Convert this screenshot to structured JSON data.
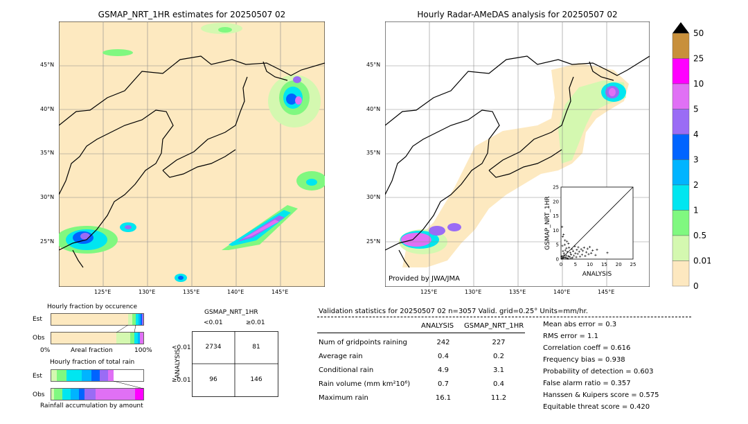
{
  "left_map": {
    "title": "GSMAP_NRT_1HR estimates for 20250507 02",
    "lat_labels": [
      "45°N",
      "40°N",
      "35°N",
      "30°N",
      "25°N"
    ],
    "lon_labels": [
      "125°E",
      "130°E",
      "135°E",
      "140°E",
      "145°E"
    ]
  },
  "right_map": {
    "title": "Hourly Radar-AMeDAS analysis for 20250507 02",
    "lat_labels": [
      "45°N",
      "40°N",
      "35°N",
      "30°N",
      "25°N"
    ],
    "lon_labels": [
      "125°E",
      "130°E",
      "135°E",
      "140°E",
      "145°E"
    ],
    "credit": "Provided by JWA/JMA"
  },
  "colorbar": {
    "levels": [
      "50",
      "25",
      "10",
      "5",
      "4",
      "3",
      "2",
      "1",
      "0.5",
      "0.01",
      "0"
    ],
    "colors": [
      "#c8903c",
      "#ff00ff",
      "#e070f5",
      "#9a6cf5",
      "#0064ff",
      "#00b4ff",
      "#00e6f0",
      "#80f880",
      "#d4f8b0",
      "#fde8c0"
    ],
    "over_color": "#000000"
  },
  "occurrence": {
    "title": "Hourly fraction by occurence",
    "rows": [
      "Est",
      "Obs"
    ],
    "xlabel_left": "0%",
    "xlabel_mid": "Areal fraction",
    "xlabel_right": "100%"
  },
  "total_rain": {
    "title": "Hourly fraction of total rain",
    "rows": [
      "Est",
      "Obs"
    ],
    "footer": "Rainfall accumulation by amount"
  },
  "contingency": {
    "col_header": "GSMAP_NRT_1HR",
    "col_lt": "<0.01",
    "col_ge": "≥0.01",
    "row_header": "ANALYSIS",
    "row_lt": "<0.01",
    "row_ge": "≥0.01",
    "cells": [
      "2734",
      "81",
      "96",
      "146"
    ]
  },
  "validation": {
    "header": "Validation statistics for 20250507 02  n=3057 Valid. grid=0.25° Units=mm/hr.",
    "col_analysis": "ANALYSIS",
    "col_gsmap": "GSMAP_NRT_1HR",
    "rows": [
      {
        "label": "Num of gridpoints raining",
        "analysis": "242",
        "gsmap": "227"
      },
      {
        "label": "Average rain",
        "analysis": "0.4",
        "gsmap": "0.2"
      },
      {
        "label": "Conditional rain",
        "analysis": "4.9",
        "gsmap": "3.1"
      },
      {
        "label": "Rain volume (mm km²10⁶)",
        "analysis": "0.7",
        "gsmap": "0.4"
      },
      {
        "label": "Maximum rain",
        "analysis": "16.1",
        "gsmap": "11.2"
      }
    ],
    "scores": [
      "Mean abs error =    0.3",
      "RMS error =    1.1",
      "Correlation coeff =  0.616",
      "Frequency bias =  0.938",
      "Probability of detection =  0.603",
      "False alarm ratio =  0.357",
      "Hanssen & Kuipers score =  0.575",
      "Equitable threat score =  0.420"
    ]
  },
  "chart_data": {
    "type": "scatter",
    "xlabel": "ANALYSIS",
    "ylabel": "GSMAP_NRT_1HR",
    "xlim": [
      0,
      25
    ],
    "ylim": [
      0,
      25
    ],
    "ticks": [
      "0",
      "5",
      "10",
      "15",
      "20",
      "25"
    ],
    "points": [
      [
        0.3,
        0.2
      ],
      [
        0.5,
        1.0
      ],
      [
        0.8,
        0.4
      ],
      [
        1.0,
        2.0
      ],
      [
        1.2,
        0.6
      ],
      [
        1.5,
        3.1
      ],
      [
        1.8,
        1.2
      ],
      [
        2.0,
        0.3
      ],
      [
        2.2,
        2.5
      ],
      [
        2.5,
        1.0
      ],
      [
        2.8,
        4.0
      ],
      [
        3.0,
        0.8
      ],
      [
        3.2,
        2.2
      ],
      [
        3.5,
        1.6
      ],
      [
        3.8,
        3.5
      ],
      [
        4.0,
        0.5
      ],
      [
        4.2,
        2.8
      ],
      [
        4.5,
        1.2
      ],
      [
        4.8,
        4.4
      ],
      [
        5.0,
        2.0
      ],
      [
        5.3,
        0.7
      ],
      [
        5.5,
        3.2
      ],
      [
        5.8,
        1.8
      ],
      [
        6.0,
        4.1
      ],
      [
        6.3,
        2.6
      ],
      [
        6.6,
        0.9
      ],
      [
        7.0,
        3.4
      ],
      [
        7.3,
        1.5
      ],
      [
        7.6,
        2.9
      ],
      [
        8.0,
        4.0
      ],
      [
        8.4,
        1.1
      ],
      [
        8.8,
        2.4
      ],
      [
        9.2,
        3.6
      ],
      [
        9.6,
        1.7
      ],
      [
        10.0,
        4.2
      ],
      [
        10.5,
        2.1
      ],
      [
        11.0,
        3.0
      ],
      [
        12.0,
        1.4
      ],
      [
        12.5,
        3.3
      ],
      [
        16.1,
        2.2
      ],
      [
        0.6,
        7.8
      ],
      [
        0.9,
        8.5
      ],
      [
        1.4,
        6.5
      ],
      [
        2.6,
        5.4
      ],
      [
        0.4,
        11.2
      ],
      [
        0.2,
        0.9
      ],
      [
        0.7,
        2.8
      ],
      [
        1.1,
        1.4
      ],
      [
        1.6,
        0.5
      ],
      [
        1.9,
        3.8
      ],
      [
        2.4,
        0.2
      ],
      [
        3.4,
        0.3
      ],
      [
        0.5,
        4.6
      ],
      [
        1.3,
        5.0
      ],
      [
        2.1,
        6.1
      ]
    ]
  }
}
